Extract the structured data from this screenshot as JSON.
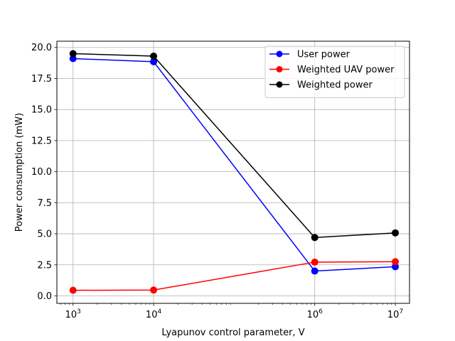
{
  "chart_data": {
    "type": "line",
    "title": "",
    "xlabel": "Lyapunov control parameter, V",
    "ylabel": "Power consumption (mW)",
    "xscale": "log",
    "xlim": [
      630,
      15000000
    ],
    "ylim": [
      -0.6,
      20.5
    ],
    "grid": true,
    "legend_position": "top-right",
    "x": [
      1000,
      10000,
      1000000,
      10000000
    ],
    "x_tick_values": [
      1000,
      10000,
      1000000,
      10000000
    ],
    "x_tick_bases": [
      "10",
      "10",
      "10",
      "10"
    ],
    "x_tick_exponents": [
      "3",
      "4",
      "6",
      "7"
    ],
    "y_tick_values": [
      0,
      2.5,
      5,
      7.5,
      10,
      12.5,
      15,
      17.5,
      20
    ],
    "y_tick_labels": [
      "0.0",
      "2.5",
      "5.0",
      "7.5",
      "10.0",
      "12.5",
      "15.0",
      "17.5",
      "20.0"
    ],
    "series": [
      {
        "name": "User power",
        "color": "#0000ff",
        "marker": "circle",
        "values": [
          19.1,
          18.85,
          2.0,
          2.35
        ]
      },
      {
        "name": "Weighted UAV power",
        "color": "#ff0000",
        "marker": "circle",
        "values": [
          0.45,
          0.47,
          2.72,
          2.75
        ]
      },
      {
        "name": "Weighted power",
        "color": "#000000",
        "marker": "circle",
        "values": [
          19.5,
          19.3,
          4.7,
          5.07
        ]
      }
    ]
  }
}
